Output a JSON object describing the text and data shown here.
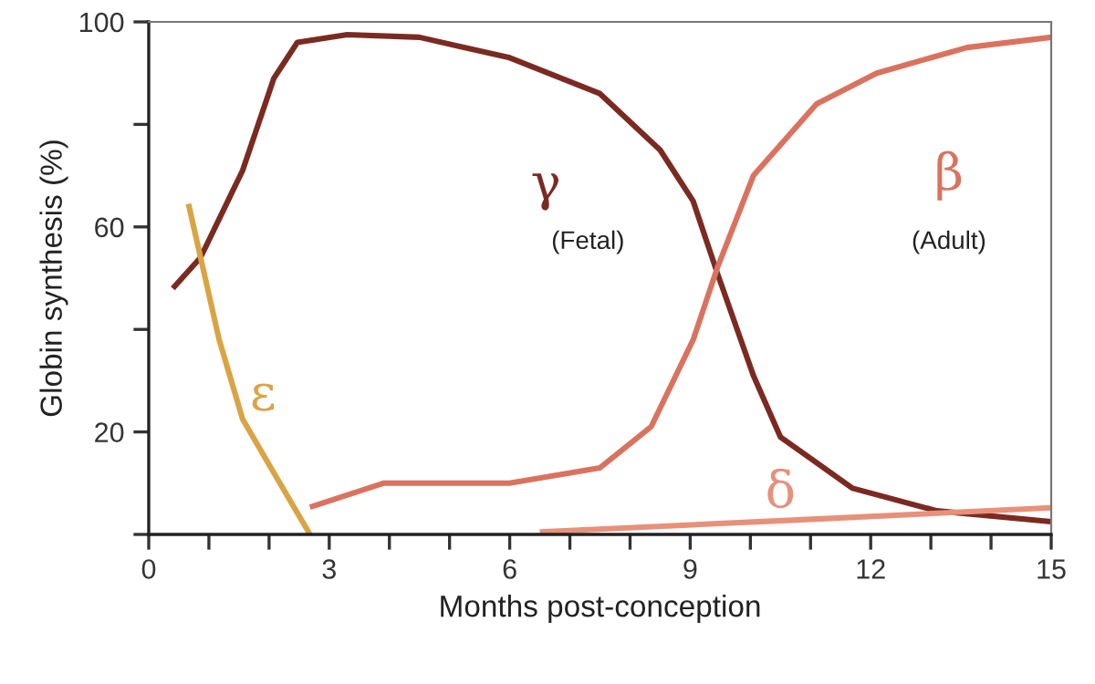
{
  "chart_data": {
    "type": "line",
    "xlabel": "Months post-conception",
    "ylabel": "Globin synthesis (%)",
    "xlim": [
      0,
      15
    ],
    "ylim": [
      0,
      100
    ],
    "xticks": [
      0,
      {
        "value": 1,
        "label": null
      },
      {
        "value": 2,
        "label": null
      },
      3,
      {
        "value": 4,
        "label": null
      },
      {
        "value": 5,
        "label": null
      },
      6,
      {
        "value": 7,
        "label": null
      },
      {
        "value": 8,
        "label": null
      },
      9,
      {
        "value": 10,
        "label": null
      },
      {
        "value": 11,
        "label": null
      },
      12,
      {
        "value": 13,
        "label": null
      },
      {
        "value": 14,
        "label": null
      },
      15
    ],
    "yticks": [
      {
        "value": 0,
        "label": null
      },
      20,
      {
        "value": 40,
        "label": null
      },
      60,
      {
        "value": 80,
        "label": null
      },
      100
    ],
    "grid": false,
    "legend": false,
    "marker": "none",
    "line_style": "solid",
    "series": [
      {
        "name": "γ",
        "color": "#7b2a22",
        "x": [
          0.4,
          0.86,
          1.56,
          2.08,
          2.47,
          3.3,
          4.5,
          6.0,
          7.5,
          8.5,
          9.05,
          9.45,
          10.05,
          10.5,
          11.7,
          13.1,
          15.0
        ],
        "values": [
          48,
          54,
          71,
          89,
          96,
          97.5,
          97,
          93,
          86,
          75,
          65,
          51,
          31,
          19,
          9,
          4.6,
          2.5
        ]
      },
      {
        "name": "β",
        "color": "#d9735f",
        "x": [
          2.68,
          3.9,
          5.0,
          6.0,
          7.5,
          8.35,
          9.05,
          9.45,
          10.05,
          11.1,
          12.1,
          13.6,
          15.0
        ],
        "values": [
          5.3,
          10,
          10,
          10,
          13,
          21,
          38,
          52,
          70,
          84,
          90,
          95,
          97
        ]
      },
      {
        "name": "δ",
        "color": "#e8907a",
        "x": [
          6.5,
          11.1,
          15.0
        ],
        "values": [
          0.5,
          3,
          5.2
        ]
      },
      {
        "name": "ε",
        "color": "#d9a444",
        "x": [
          0.66,
          1.17,
          1.56,
          2.08,
          2.68
        ],
        "values": [
          64.5,
          38,
          22.5,
          12,
          0
        ]
      }
    ],
    "annotations": [
      "(Fetal)",
      "(Adult)"
    ]
  }
}
